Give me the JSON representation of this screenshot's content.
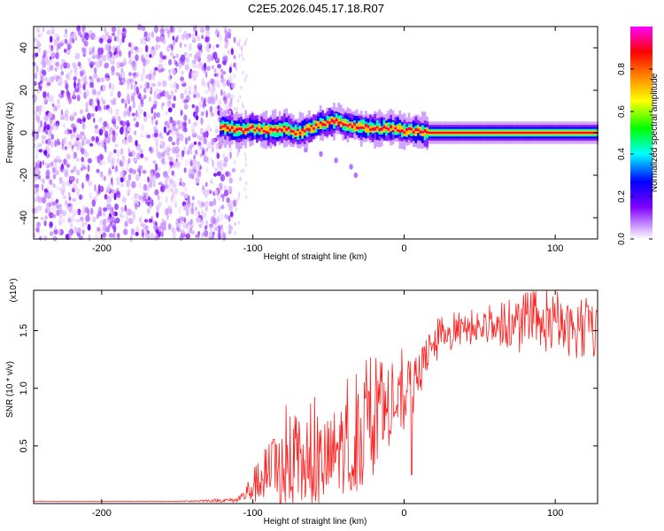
{
  "title": "C2E5.2026.045.17.18.R07",
  "chart_data": [
    {
      "type": "heatmap",
      "xlabel": "Height of straight line (km)",
      "ylabel": "Frequency (Hz)",
      "xlim": [
        -245,
        128
      ],
      "ylim": [
        -50,
        50
      ],
      "xticks": [
        -200,
        -100,
        0,
        100
      ],
      "yticks": [
        -40,
        -20,
        0,
        20,
        40
      ],
      "colorbar": {
        "label": "Normalized spectral amplitude",
        "range": [
          0,
          1
        ],
        "ticks": [
          0.0,
          0.2,
          0.4,
          0.6,
          0.8
        ],
        "colors": [
          "#ffffff",
          "#cc99ff",
          "#7f00ff",
          "#0000ff",
          "#00ffff",
          "#00ff00",
          "#ffff00",
          "#ff8000",
          "#ff0000",
          "#ff00ff"
        ]
      },
      "noise_region": {
        "x_range": [
          -245,
          -112
        ],
        "freq_range": [
          -50,
          50
        ],
        "amplitude_range": [
          0.05,
          0.25
        ]
      },
      "signal_ridge": {
        "x": [
          -122,
          -110,
          -100,
          -90,
          -80,
          -70,
          -60,
          -50,
          -45,
          -40,
          -30,
          -20,
          -10,
          0,
          10,
          15,
          20,
          40,
          60,
          80,
          100,
          128
        ],
        "freq": [
          3,
          1,
          2,
          1,
          2,
          0,
          3,
          5,
          6,
          4,
          3,
          2,
          2,
          1,
          1,
          0,
          0,
          0,
          0,
          0,
          0,
          0
        ],
        "peak_amplitude": 1.0
      },
      "secondary_trace": {
        "x": [
          -65,
          -55,
          -45,
          -35,
          -32
        ],
        "freq": [
          -8,
          -10,
          -13,
          -16,
          -20
        ]
      }
    },
    {
      "type": "line",
      "xlabel": "Height of straight line (km)",
      "ylabel": "SNR (10 * v/v)",
      "y_multiplier": "(x10⁴)",
      "xlim": [
        -245,
        128
      ],
      "ylim": [
        0,
        18500
      ],
      "xticks": [
        -200,
        -100,
        0,
        100
      ],
      "yticks": [
        5000,
        10000,
        15000
      ],
      "ytick_labels": [
        "0.5",
        "1.0",
        "1.5"
      ],
      "color": "#ff2020",
      "series": [
        {
          "name": "SNR",
          "x": [
            -245,
            -200,
            -150,
            -110,
            -105,
            -100,
            -95,
            -90,
            -80,
            -70,
            -60,
            -50,
            -45,
            -40,
            -30,
            -20,
            -15,
            -10,
            -5,
            0,
            5,
            10,
            15,
            20,
            25,
            30,
            35,
            40,
            50,
            60,
            70,
            80,
            90,
            100,
            110,
            120,
            128
          ],
          "y": [
            200,
            200,
            200,
            300,
            800,
            1500,
            2000,
            2500,
            3000,
            3000,
            3100,
            3500,
            4500,
            5000,
            5500,
            6500,
            7500,
            8000,
            8500,
            9000,
            9500,
            11000,
            13000,
            13500,
            14000,
            14500,
            14800,
            15000,
            15100,
            15200,
            15000,
            15000,
            15200,
            15400,
            15000,
            14800,
            15000
          ],
          "noise_amplitude": [
            20,
            20,
            20,
            200,
            800,
            1500,
            2000,
            3000,
            3500,
            3500,
            3800,
            4000,
            4000,
            4200,
            4500,
            4000,
            3500,
            3000,
            2600,
            3000,
            2500,
            2000,
            1500,
            1500,
            1500,
            1400,
            1300,
            1300,
            1300,
            1300,
            1700,
            2200,
            2200,
            2200,
            2300,
            2400,
            2400
          ]
        }
      ],
      "dips": [
        {
          "x": 5,
          "y": 2500
        },
        {
          "x": -35,
          "y": 1200
        }
      ]
    }
  ]
}
